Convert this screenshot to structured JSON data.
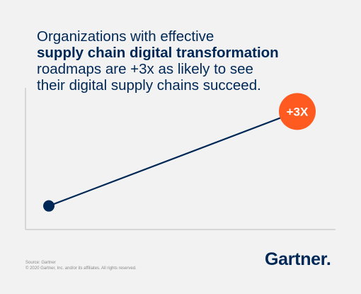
{
  "headline": {
    "line1": "Organizations with effective",
    "line2": "supply chain digital transformation",
    "line3": "roadmaps are +3x as likely to see",
    "line4": "their digital supply chains succeed."
  },
  "chart_data": {
    "type": "line",
    "title": "",
    "xlabel": "",
    "ylabel": "",
    "series": [
      {
        "points": [
          {
            "x": 0,
            "y": 1
          },
          {
            "x": 1,
            "y": 3
          }
        ]
      }
    ],
    "ylim": [
      0.5,
      3.5
    ],
    "grid": false,
    "annotations": [
      {
        "text": "+3X",
        "at_point": 1
      }
    ],
    "colors": {
      "line": "#002856",
      "start_marker": "#002856",
      "end_marker": "#ff5a1f",
      "axis": "#c6c6c6",
      "annotation_text": "#ffffff"
    }
  },
  "footer": {
    "source": "Source: Gartner",
    "copyright": "© 2020 Gartner, Inc. and/or its affiliates. All rights reserved."
  },
  "brand": {
    "logo_text": "Gartner."
  }
}
